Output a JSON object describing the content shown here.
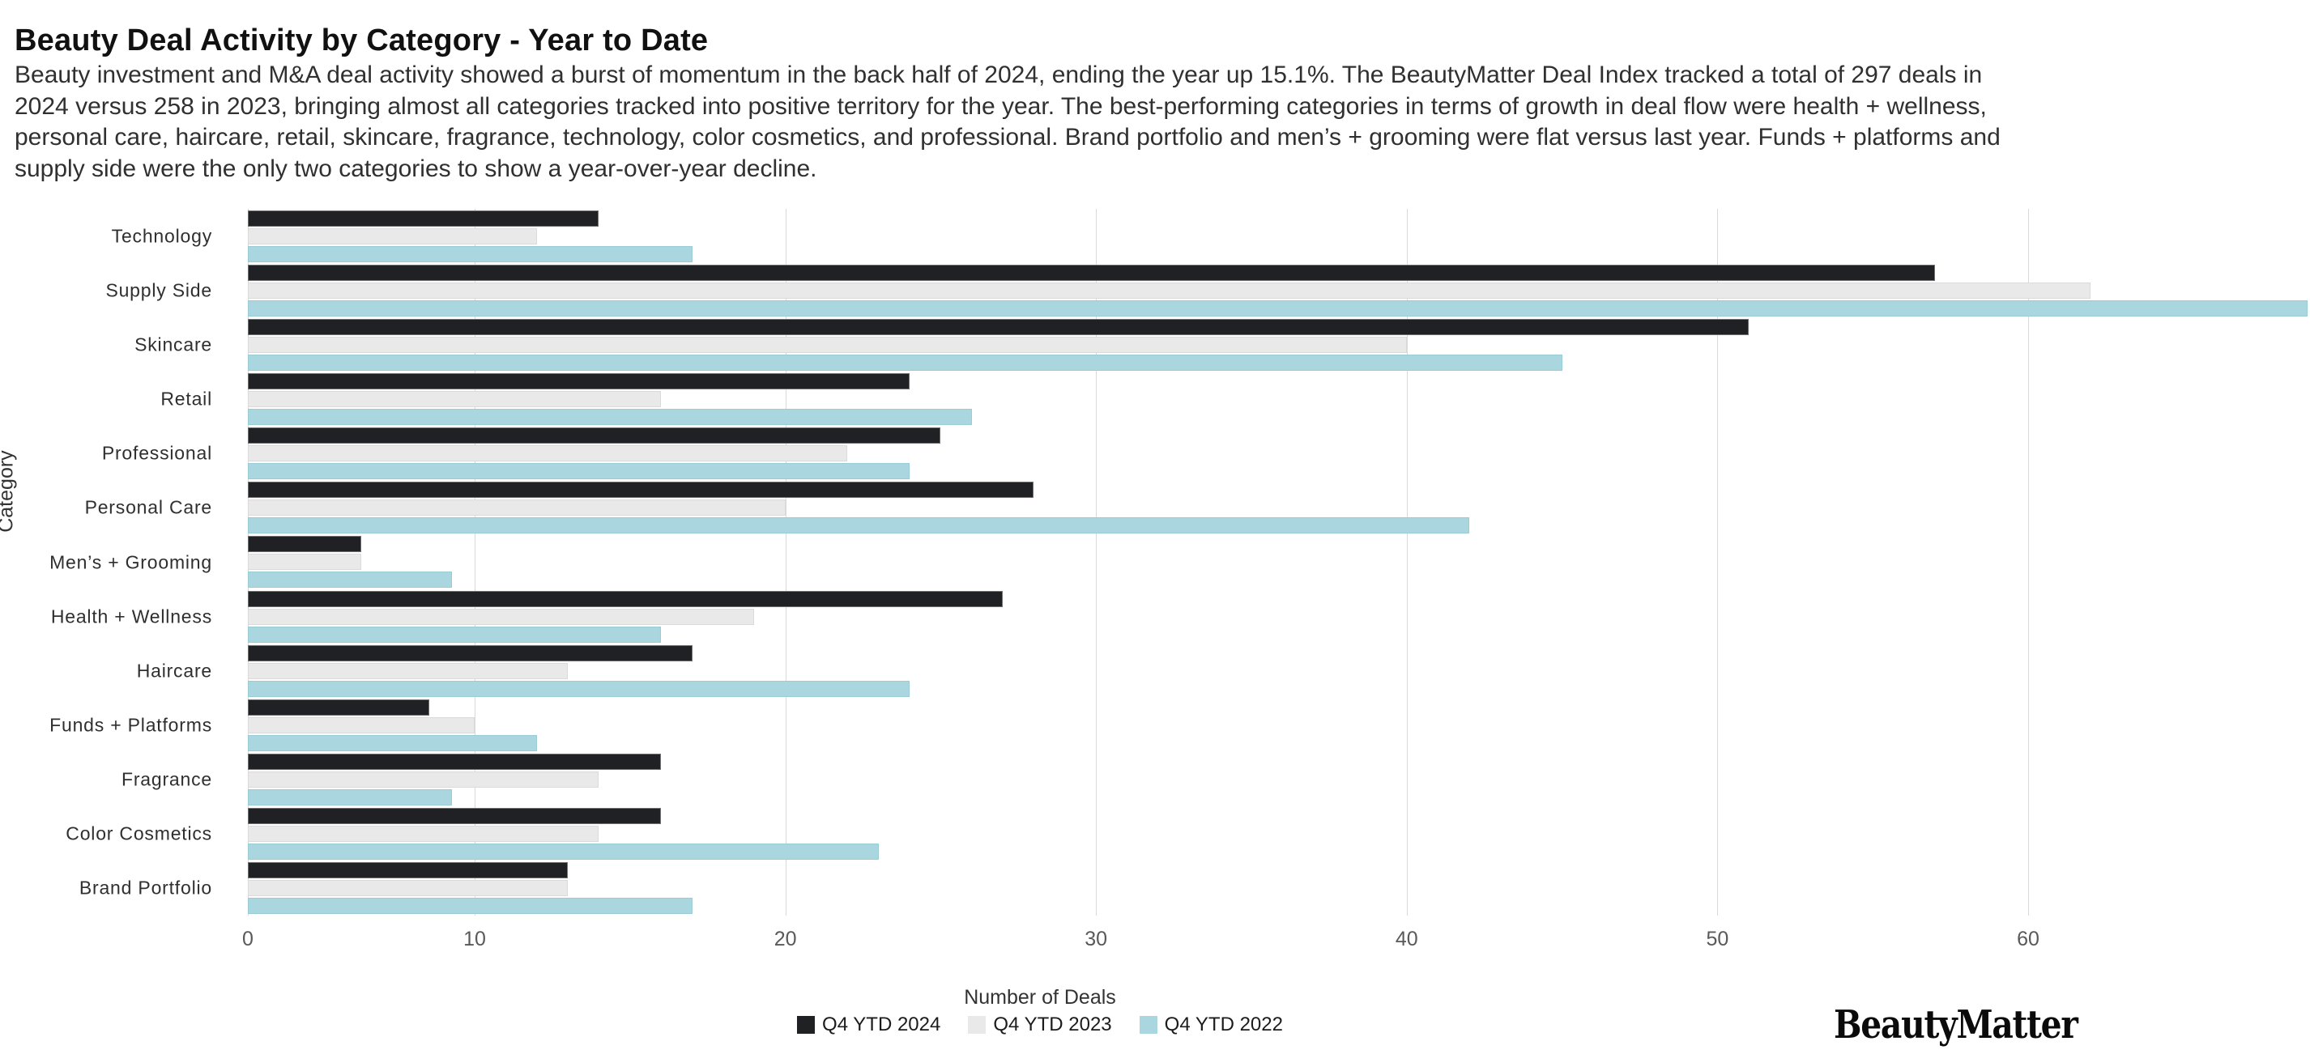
{
  "page": {
    "title": "Beauty Deal Activity by Category - Year to Date",
    "paragraph_lines": [
      "Beauty investment and M&A deal activity showed a burst of momentum in the back half of 2024, ending the year up 15.1%. The BeautyMatter Deal Index tracked a total of 297 deals in",
      "2024 versus 258 in 2023, bringing almost all categories tracked into positive territory for the year. The best-performing categories in terms of growth in deal flow were health + wellness,",
      "personal care, haircare, retail, skincare, fragrance, technology, color cosmetics, and professional. Brand portfolio and men’s + grooming were flat versus last year. Funds + platforms and",
      "supply side were the only two categories to show a year-over-year decline."
    ]
  },
  "chart_data": {
    "type": "bar",
    "orientation": "horizontal",
    "title": "Beauty Deal Activity by Category - Year to Date",
    "xlabel": "Number of Deals",
    "ylabel": "Category",
    "xlim": [
      0,
      69
    ],
    "xticks": [
      0,
      10,
      20,
      30,
      40,
      50,
      60
    ],
    "grid": true,
    "legend_position": "bottom",
    "categories": [
      "Technology",
      "Supply Side",
      "Skincare",
      "Retail",
      "Professional",
      "Personal Care",
      "Men’s + Grooming",
      "Health + Wellness",
      "Haircare",
      "Funds + Platforms",
      "Fragrance",
      "Color Cosmetics",
      "Brand Portfolio"
    ],
    "series": [
      {
        "name": "Q4 YTD 2024",
        "color": "#202124",
        "values": [
          14,
          57,
          51,
          24,
          25,
          28,
          5,
          27,
          17,
          8,
          16,
          16,
          13
        ]
      },
      {
        "name": "Q4 YTD 2023",
        "color": "#e9e9e9",
        "values": [
          12,
          62,
          40,
          16,
          22,
          20,
          5,
          19,
          13,
          10,
          14,
          14,
          13
        ]
      },
      {
        "name": "Q4 YTD 2022",
        "color": "#aad6e0",
        "values": [
          17,
          69,
          45,
          26,
          24,
          42,
          9,
          16,
          24,
          12,
          9,
          23,
          17
        ]
      }
    ]
  },
  "footer": {
    "brand": "BeautyMatter"
  }
}
